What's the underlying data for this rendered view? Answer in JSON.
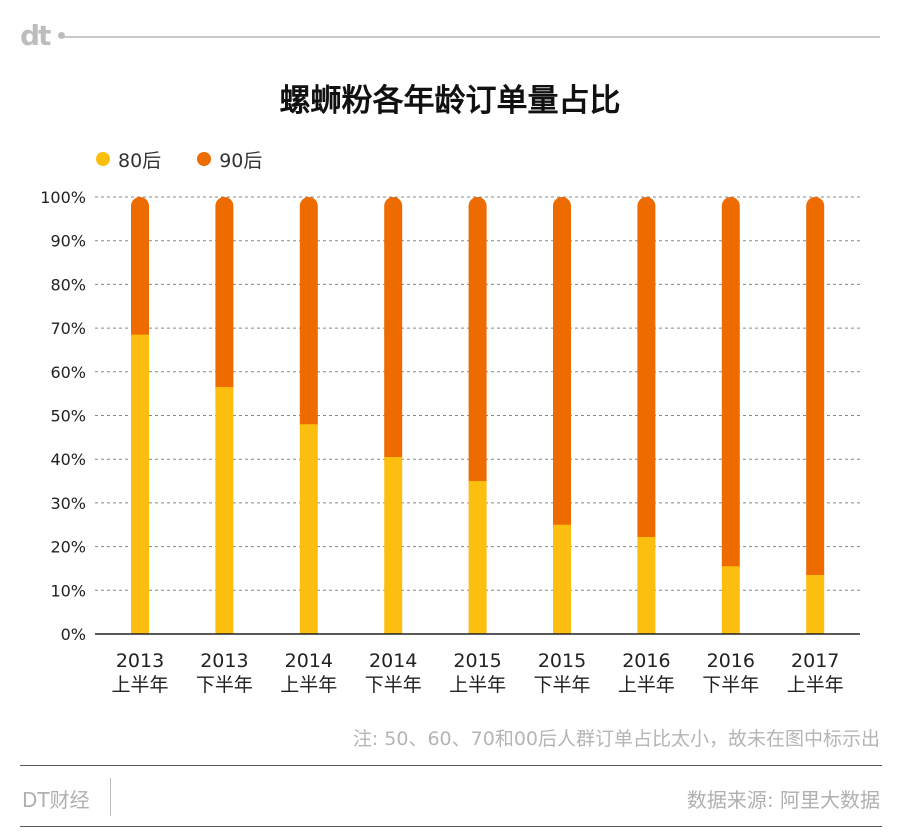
{
  "logo_text": "dt",
  "title": "螺蛳粉各年龄订单量占比",
  "legend": [
    {
      "label": "80后",
      "color": "#FDBF0F"
    },
    {
      "label": "90后",
      "color": "#EE6B00"
    }
  ],
  "note": "注: 50、60、70和00后人群订单占比太小，故未在图中标示出",
  "brand": "DT财经",
  "source": "数据来源: 阿里大数据",
  "chart_data": {
    "type": "bar",
    "stacked": true,
    "categories": [
      [
        "2013",
        "上半年"
      ],
      [
        "2013",
        "下半年"
      ],
      [
        "2014",
        "上半年"
      ],
      [
        "2014",
        "下半年"
      ],
      [
        "2015",
        "上半年"
      ],
      [
        "2015",
        "下半年"
      ],
      [
        "2016",
        "上半年"
      ],
      [
        "2016",
        "下半年"
      ],
      [
        "2017",
        "上半年"
      ]
    ],
    "series": [
      {
        "name": "80后",
        "color": "#FDBF0F",
        "values": [
          68.5,
          56.5,
          48,
          40.5,
          35,
          25,
          22.2,
          15.5,
          13.5
        ]
      },
      {
        "name": "90后",
        "color": "#EE6B00",
        "values": [
          31.5,
          43.5,
          52,
          59.5,
          65,
          75,
          77.8,
          84.5,
          86.5
        ]
      }
    ],
    "y_ticks": [
      "0%",
      "10%",
      "20%",
      "30%",
      "40%",
      "50%",
      "60%",
      "70%",
      "80%",
      "90%",
      "100%"
    ],
    "ylim": [
      0,
      100
    ],
    "grid": "dashed horizontal",
    "legend_position": "top-left"
  }
}
